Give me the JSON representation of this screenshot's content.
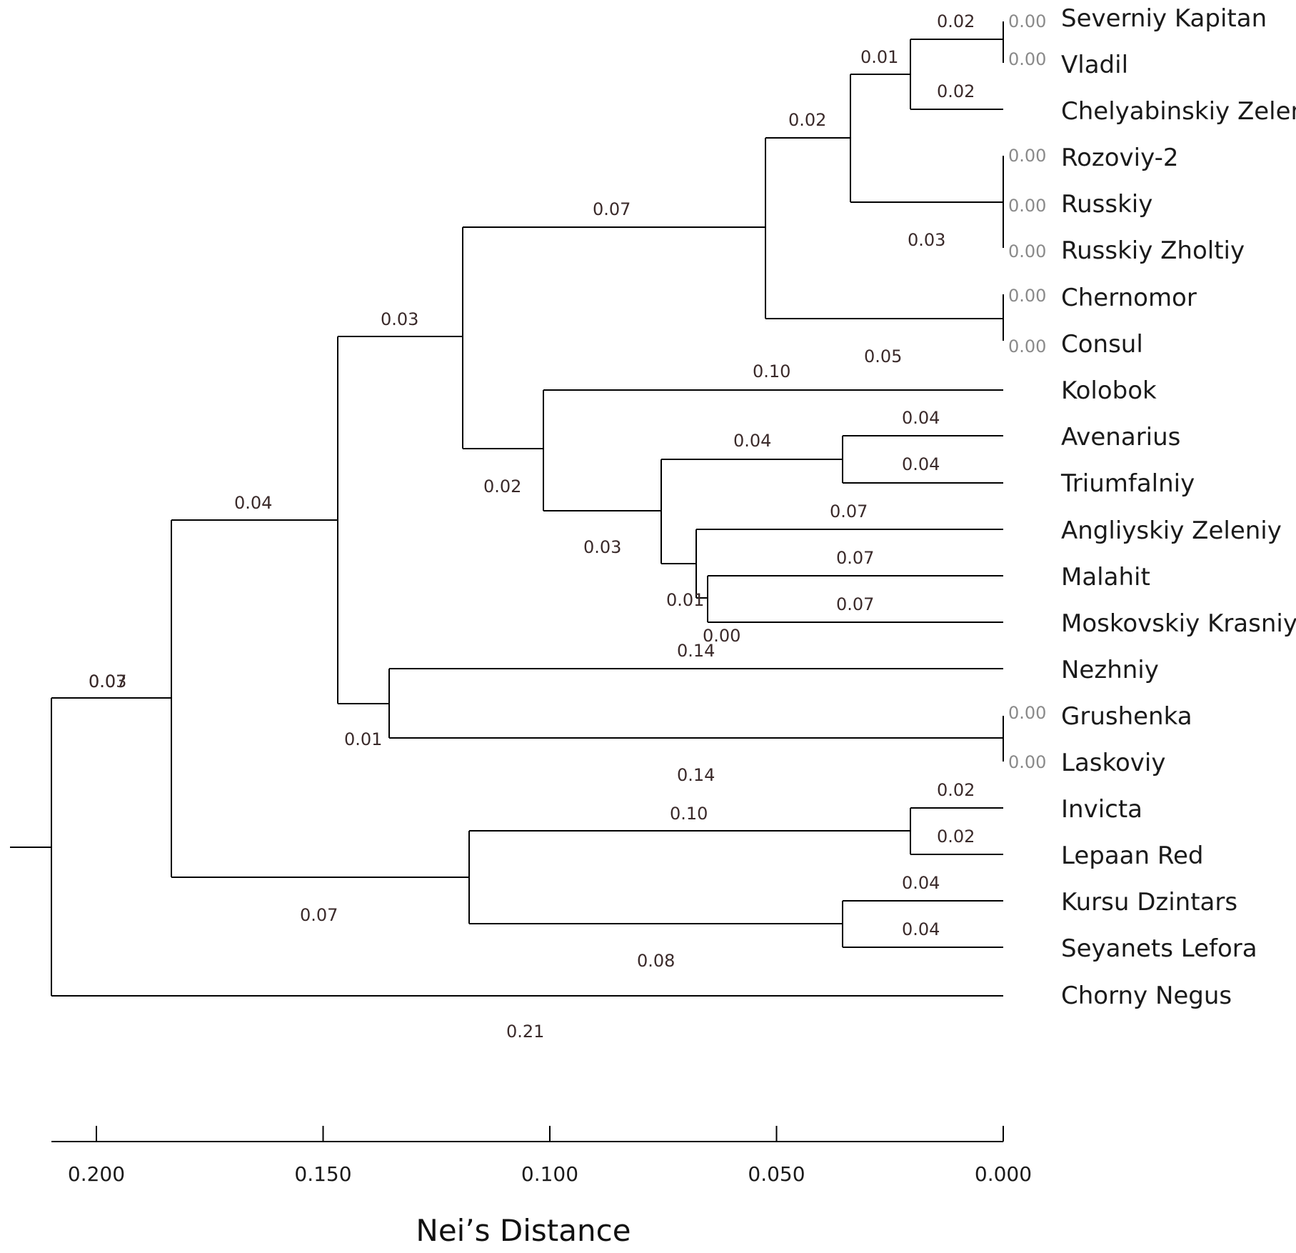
{
  "tree": {
    "leaves": [
      "Severniy Kapitan",
      "Vladil",
      "Chelyabinskiy Zeleniy",
      "Rozoviy-2",
      "Russkiy",
      "Russkiy Zholtiy",
      "Chernomor",
      "Consul",
      "Kolobok",
      "Avenarius",
      "Triumfalniy",
      "Angliyskiy Zeleniy",
      "Malahit",
      "Moskovskiy Krasniy",
      "Nezhniy",
      "Grushenka",
      "Laskoviy",
      "Invicta",
      "Lepaan Red",
      "Kursu Dzintars",
      "Seyanets Lefora",
      "Chorny Negus"
    ],
    "branch_lengths": [
      {
        "value": "0.02"
      },
      {
        "value": "0.00"
      },
      {
        "value": "0.00"
      },
      {
        "value": "0.01"
      },
      {
        "value": "0.02"
      },
      {
        "value": "0.02"
      },
      {
        "value": "0.00"
      },
      {
        "value": "0.00"
      },
      {
        "value": "0.00"
      },
      {
        "value": "0.03"
      },
      {
        "value": "0.07"
      },
      {
        "value": "0.00"
      },
      {
        "value": "0.00"
      },
      {
        "value": "0.05"
      },
      {
        "value": "0.03"
      },
      {
        "value": "0.10"
      },
      {
        "value": "0.04"
      },
      {
        "value": "0.04"
      },
      {
        "value": "0.04"
      },
      {
        "value": "0.02"
      },
      {
        "value": "0.04"
      },
      {
        "value": "0.07"
      },
      {
        "value": "0.03"
      },
      {
        "value": "0.07"
      },
      {
        "value": "0.01"
      },
      {
        "value": "0.07"
      },
      {
        "value": "0.07"
      },
      {
        "value": "0.00"
      },
      {
        "value": "0.14"
      },
      {
        "value": "0.00"
      },
      {
        "value": "0.01"
      },
      {
        "value": "0.00"
      },
      {
        "value": "0.14"
      },
      {
        "value": "0.03"
      },
      {
        "value": "0.02"
      },
      {
        "value": "0.10"
      },
      {
        "value": "0.02"
      },
      {
        "value": "0.04"
      },
      {
        "value": "0.07"
      },
      {
        "value": "0.04"
      },
      {
        "value": "0.08"
      },
      {
        "value": "0.21"
      }
    ]
  },
  "axis": {
    "title": "Nei’s Distance",
    "ticks": [
      {
        "value": 0.2,
        "label": "0.200"
      },
      {
        "value": 0.15,
        "label": "0.150"
      },
      {
        "value": 0.1,
        "label": "0.100"
      },
      {
        "value": 0.05,
        "label": "0.050"
      },
      {
        "value": 0.0,
        "label": "0.000"
      }
    ]
  }
}
